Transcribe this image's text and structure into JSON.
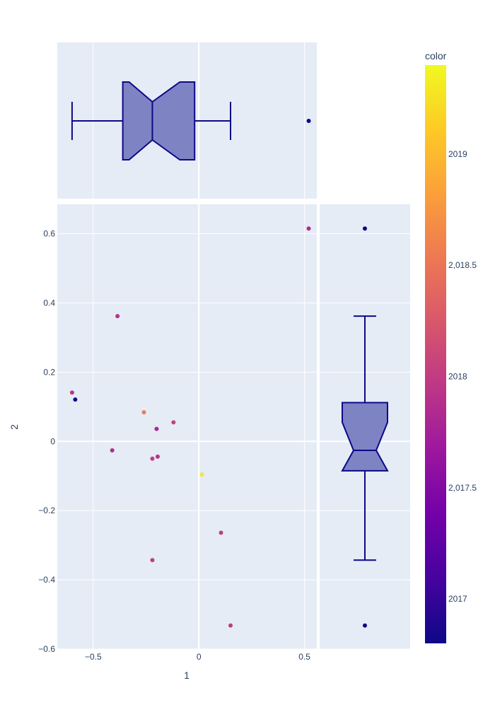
{
  "chart_data": {
    "type": "scatter",
    "x_axis": {
      "title": "1",
      "range": [
        -0.67,
        1.0
      ],
      "ticks": [
        -0.5,
        0,
        0.5
      ],
      "tick_labels": [
        "−0.5",
        "0",
        "0.5"
      ]
    },
    "y_axis": {
      "title": "2",
      "range": [
        -0.6,
        0.685
      ],
      "ticks": [
        -0.6,
        -0.4,
        -0.2,
        0,
        0.2,
        0.4,
        0.6
      ],
      "tick_labels": [
        "−0.6",
        "−0.4",
        "−0.2",
        "0",
        "0.2",
        "0.4",
        "0.6"
      ]
    },
    "colorbar": {
      "title": "color",
      "range": [
        2016.8,
        2019.4
      ],
      "ticks": [
        2017,
        2017.5,
        2018,
        2018.5,
        2019
      ],
      "tick_labels": [
        "2017",
        "2,017.5",
        "2018",
        "2,018.5",
        "2019"
      ],
      "colorscale": "plasma"
    },
    "points": [
      {
        "x": 0.52,
        "y": 0.615,
        "color": 2017.85
      },
      {
        "x": -0.385,
        "y": 0.362,
        "color": 2017.9
      },
      {
        "x": -0.6,
        "y": 0.141,
        "color": 2017.95
      },
      {
        "x": -0.585,
        "y": 0.121,
        "color": 2016.85
      },
      {
        "x": -0.26,
        "y": 0.084,
        "color": 2018.55
      },
      {
        "x": -0.12,
        "y": 0.055,
        "color": 2018.05
      },
      {
        "x": -0.2,
        "y": 0.036,
        "color": 2017.8
      },
      {
        "x": -0.41,
        "y": -0.026,
        "color": 2017.85
      },
      {
        "x": -0.195,
        "y": -0.044,
        "color": 2017.9
      },
      {
        "x": -0.22,
        "y": -0.05,
        "color": 2018.0
      },
      {
        "x": 0.015,
        "y": -0.096,
        "color": 2019.3
      },
      {
        "x": 0.105,
        "y": -0.264,
        "color": 2018.0
      },
      {
        "x": -0.22,
        "y": -0.343,
        "color": 2018.0
      },
      {
        "x": 0.15,
        "y": -0.532,
        "color": 2018.0
      }
    ],
    "marginal_x_box": {
      "lowerfence": -0.6,
      "q1": -0.36,
      "median": -0.22,
      "q3": -0.02,
      "upperfence": 0.15,
      "notch_low": -0.33,
      "notch_high": -0.09,
      "outliers": [
        0.52
      ]
    },
    "marginal_y_box": {
      "lowerfence": -0.343,
      "q1": -0.085,
      "median": -0.026,
      "q3": 0.112,
      "upperfence": 0.362,
      "notch_low": -0.085,
      "notch_high": 0.055,
      "outliers": [
        0.615,
        -0.532
      ]
    },
    "colors": {
      "box_fill": "#7e83c4",
      "box_line": "#0d0887",
      "plot_bg": "#e5ecf6",
      "grid": "#ffffff",
      "text": "#2a3f5f"
    }
  }
}
